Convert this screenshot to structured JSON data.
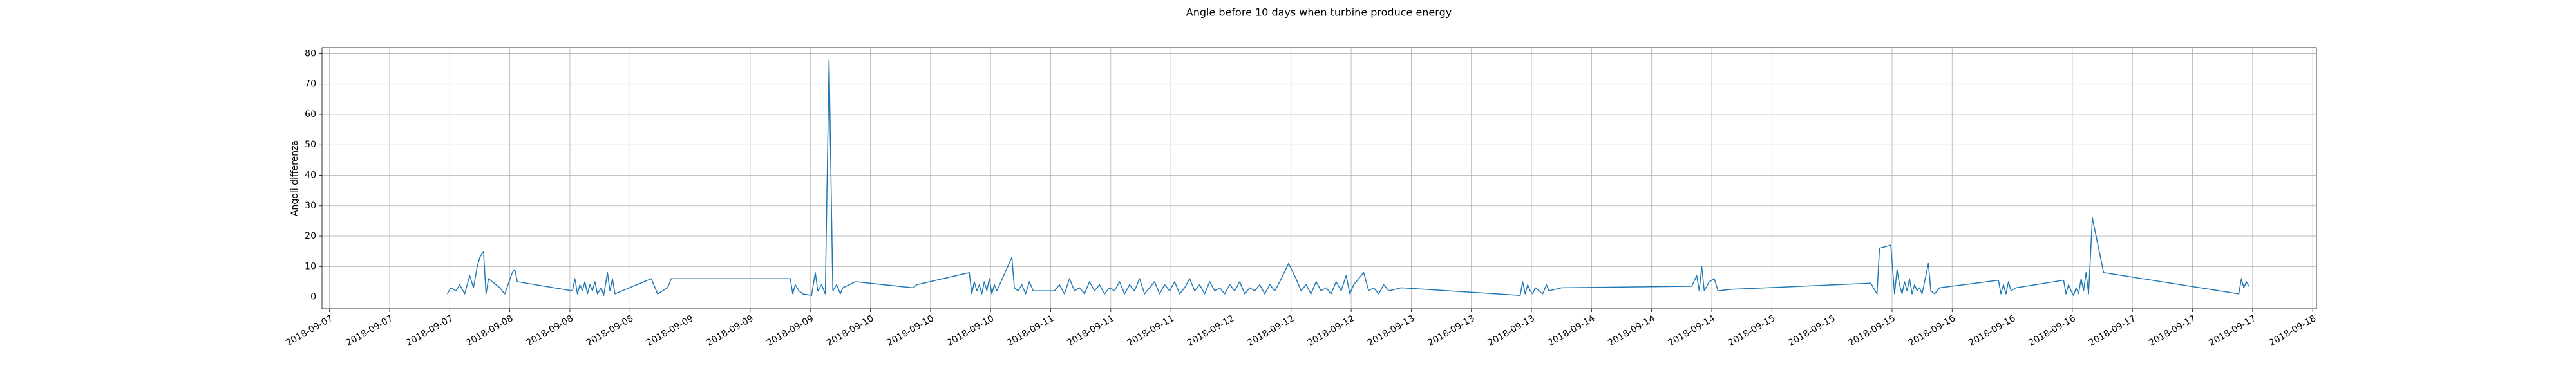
{
  "chart_data": {
    "type": "line",
    "title": "Angle before 10 days when turbine produce energy",
    "ylabel": "Angoli differenza",
    "color": "#1f77b4",
    "grid": true,
    "xlim": [
      "2018-09-06T23:00",
      "2018-09-18T00:30"
    ],
    "ylim": [
      -3.9,
      82
    ],
    "yticks": [
      0,
      10,
      20,
      30,
      40,
      50,
      60,
      70,
      80
    ],
    "xticks": [
      {
        "value": "2018-09-07T00:00",
        "label": "2018-09-07"
      },
      {
        "value": "2018-09-07T08:00",
        "label": "2018-09-07"
      },
      {
        "value": "2018-09-07T16:00",
        "label": "2018-09-07"
      },
      {
        "value": "2018-09-08T00:00",
        "label": "2018-09-08"
      },
      {
        "value": "2018-09-08T08:00",
        "label": "2018-09-08"
      },
      {
        "value": "2018-09-08T16:00",
        "label": "2018-09-08"
      },
      {
        "value": "2018-09-09T00:00",
        "label": "2018-09-09"
      },
      {
        "value": "2018-09-09T08:00",
        "label": "2018-09-09"
      },
      {
        "value": "2018-09-09T16:00",
        "label": "2018-09-09"
      },
      {
        "value": "2018-09-10T00:00",
        "label": "2018-09-10"
      },
      {
        "value": "2018-09-10T08:00",
        "label": "2018-09-10"
      },
      {
        "value": "2018-09-10T16:00",
        "label": "2018-09-10"
      },
      {
        "value": "2018-09-11T00:00",
        "label": "2018-09-11"
      },
      {
        "value": "2018-09-11T08:00",
        "label": "2018-09-11"
      },
      {
        "value": "2018-09-11T16:00",
        "label": "2018-09-11"
      },
      {
        "value": "2018-09-12T00:00",
        "label": "2018-09-12"
      },
      {
        "value": "2018-09-12T08:00",
        "label": "2018-09-12"
      },
      {
        "value": "2018-09-12T16:00",
        "label": "2018-09-12"
      },
      {
        "value": "2018-09-13T00:00",
        "label": "2018-09-13"
      },
      {
        "value": "2018-09-13T08:00",
        "label": "2018-09-13"
      },
      {
        "value": "2018-09-13T16:00",
        "label": "2018-09-13"
      },
      {
        "value": "2018-09-14T00:00",
        "label": "2018-09-14"
      },
      {
        "value": "2018-09-14T08:00",
        "label": "2018-09-14"
      },
      {
        "value": "2018-09-14T16:00",
        "label": "2018-09-14"
      },
      {
        "value": "2018-09-15T00:00",
        "label": "2018-09-15"
      },
      {
        "value": "2018-09-15T08:00",
        "label": "2018-09-15"
      },
      {
        "value": "2018-09-15T16:00",
        "label": "2018-09-15"
      },
      {
        "value": "2018-09-16T00:00",
        "label": "2018-09-16"
      },
      {
        "value": "2018-09-16T08:00",
        "label": "2018-09-16"
      },
      {
        "value": "2018-09-16T16:00",
        "label": "2018-09-16"
      },
      {
        "value": "2018-09-17T00:00",
        "label": "2018-09-17"
      },
      {
        "value": "2018-09-17T08:00",
        "label": "2018-09-17"
      },
      {
        "value": "2018-09-17T16:00",
        "label": "2018-09-17"
      },
      {
        "value": "2018-09-18T00:00",
        "label": "2018-09-18"
      }
    ],
    "x": [
      "2018-09-07T15:40",
      "2018-09-07T16:10",
      "2018-09-07T16:50",
      "2018-09-07T17:20",
      "2018-09-07T18:00",
      "2018-09-07T18:40",
      "2018-09-07T19:10",
      "2018-09-07T19:40",
      "2018-09-07T20:00",
      "2018-09-07T20:30",
      "2018-09-07T20:50",
      "2018-09-07T21:10",
      "2018-09-07T21:40",
      "2018-09-07T22:40",
      "2018-09-07T23:20",
      "2018-09-08T00:20",
      "2018-09-08T00:40",
      "2018-09-08T01:00",
      "2018-09-08T08:20",
      "2018-09-08T08:40",
      "2018-09-08T09:00",
      "2018-09-08T09:20",
      "2018-09-08T09:40",
      "2018-09-08T10:00",
      "2018-09-08T10:20",
      "2018-09-08T10:40",
      "2018-09-08T11:00",
      "2018-09-08T11:20",
      "2018-09-08T11:40",
      "2018-09-08T12:10",
      "2018-09-08T12:30",
      "2018-09-08T13:00",
      "2018-09-08T13:20",
      "2018-09-08T13:40",
      "2018-09-08T14:00",
      "2018-09-08T18:50",
      "2018-09-08T19:40",
      "2018-09-08T21:00",
      "2018-09-08T21:30",
      "2018-09-09T13:20",
      "2018-09-09T13:40",
      "2018-09-09T14:00",
      "2018-09-09T14:30",
      "2018-09-09T15:00",
      "2018-09-09T16:10",
      "2018-09-09T16:40",
      "2018-09-09T17:00",
      "2018-09-09T17:30",
      "2018-09-09T18:00",
      "2018-09-09T18:30",
      "2018-09-09T19:00",
      "2018-09-09T19:30",
      "2018-09-09T20:00",
      "2018-09-09T20:20",
      "2018-09-09T22:00",
      "2018-09-10T05:40",
      "2018-09-10T06:10",
      "2018-09-10T13:10",
      "2018-09-10T13:30",
      "2018-09-10T13:50",
      "2018-09-10T14:10",
      "2018-09-10T14:30",
      "2018-09-10T14:50",
      "2018-09-10T15:10",
      "2018-09-10T15:30",
      "2018-09-10T15:50",
      "2018-09-10T16:10",
      "2018-09-10T16:30",
      "2018-09-10T16:50",
      "2018-09-10T18:50",
      "2018-09-10T19:10",
      "2018-09-10T19:40",
      "2018-09-10T20:10",
      "2018-09-10T20:40",
      "2018-09-10T21:10",
      "2018-09-10T21:40",
      "2018-09-11T00:30",
      "2018-09-11T01:10",
      "2018-09-11T01:50",
      "2018-09-11T02:30",
      "2018-09-11T03:10",
      "2018-09-11T03:50",
      "2018-09-11T04:30",
      "2018-09-11T05:10",
      "2018-09-11T05:50",
      "2018-09-11T06:30",
      "2018-09-11T07:10",
      "2018-09-11T07:50",
      "2018-09-11T08:30",
      "2018-09-11T09:10",
      "2018-09-11T09:50",
      "2018-09-11T10:30",
      "2018-09-11T11:10",
      "2018-09-11T11:50",
      "2018-09-11T12:30",
      "2018-09-11T13:10",
      "2018-09-11T13:50",
      "2018-09-11T14:30",
      "2018-09-11T15:10",
      "2018-09-11T15:50",
      "2018-09-11T16:30",
      "2018-09-11T17:10",
      "2018-09-11T17:50",
      "2018-09-11T18:30",
      "2018-09-11T19:10",
      "2018-09-11T19:50",
      "2018-09-11T20:30",
      "2018-09-11T21:10",
      "2018-09-11T21:50",
      "2018-09-11T22:30",
      "2018-09-11T23:10",
      "2018-09-11T23:50",
      "2018-09-12T00:30",
      "2018-09-12T01:10",
      "2018-09-12T01:50",
      "2018-09-12T02:30",
      "2018-09-12T03:10",
      "2018-09-12T03:50",
      "2018-09-12T04:30",
      "2018-09-12T05:10",
      "2018-09-12T05:50",
      "2018-09-12T06:30",
      "2018-09-12T07:40",
      "2018-09-12T08:40",
      "2018-09-12T09:20",
      "2018-09-12T10:00",
      "2018-09-12T10:40",
      "2018-09-12T11:20",
      "2018-09-12T12:00",
      "2018-09-12T12:40",
      "2018-09-12T13:20",
      "2018-09-12T14:00",
      "2018-09-12T14:40",
      "2018-09-12T15:20",
      "2018-09-12T15:50",
      "2018-09-12T16:20",
      "2018-09-12T17:00",
      "2018-09-12T17:40",
      "2018-09-12T18:20",
      "2018-09-12T19:00",
      "2018-09-12T19:40",
      "2018-09-12T20:20",
      "2018-09-12T21:00",
      "2018-09-12T22:40",
      "2018-09-13T14:30",
      "2018-09-13T14:50",
      "2018-09-13T15:10",
      "2018-09-13T15:30",
      "2018-09-13T15:50",
      "2018-09-13T16:10",
      "2018-09-13T16:30",
      "2018-09-13T17:30",
      "2018-09-13T18:00",
      "2018-09-13T18:20",
      "2018-09-13T20:00",
      "2018-09-14T13:20",
      "2018-09-14T14:00",
      "2018-09-14T14:20",
      "2018-09-14T14:40",
      "2018-09-14T15:00",
      "2018-09-14T15:40",
      "2018-09-14T16:20",
      "2018-09-14T16:50",
      "2018-09-14T18:40",
      "2018-09-15T13:10",
      "2018-09-15T14:00",
      "2018-09-15T14:20",
      "2018-09-15T15:50",
      "2018-09-15T16:20",
      "2018-09-15T16:40",
      "2018-09-15T17:00",
      "2018-09-15T17:20",
      "2018-09-15T17:40",
      "2018-09-15T18:00",
      "2018-09-15T18:20",
      "2018-09-15T18:40",
      "2018-09-15T19:00",
      "2018-09-15T19:20",
      "2018-09-15T19:40",
      "2018-09-15T20:00",
      "2018-09-15T20:50",
      "2018-09-15T21:10",
      "2018-09-15T21:40",
      "2018-09-15T22:20",
      "2018-09-16T06:10",
      "2018-09-16T06:30",
      "2018-09-16T06:50",
      "2018-09-16T07:10",
      "2018-09-16T07:30",
      "2018-09-16T07:50",
      "2018-09-16T08:30",
      "2018-09-16T14:50",
      "2018-09-16T15:10",
      "2018-09-16T15:30",
      "2018-09-16T15:50",
      "2018-09-16T16:10",
      "2018-09-16T16:30",
      "2018-09-16T16:50",
      "2018-09-16T17:10",
      "2018-09-16T17:30",
      "2018-09-16T17:50",
      "2018-09-16T18:10",
      "2018-09-16T18:40",
      "2018-09-16T20:10",
      "2018-09-17T14:10",
      "2018-09-17T14:30",
      "2018-09-17T14:50",
      "2018-09-17T15:10",
      "2018-09-17T15:30"
    ],
    "values": [
      1,
      3,
      2,
      4,
      1,
      7,
      3,
      10,
      13,
      15,
      1,
      6,
      5,
      3,
      1,
      8,
      9,
      5,
      2,
      6,
      1,
      4,
      2,
      5,
      1,
      4,
      2,
      5,
      1,
      3,
      0.5,
      8,
      2,
      6,
      1,
      6,
      1,
      3,
      6,
      6,
      1,
      4,
      2,
      1,
      0.5,
      8,
      2,
      4,
      1,
      78,
      2,
      4,
      1,
      3,
      5,
      3,
      4,
      8,
      1,
      5,
      2,
      4,
      1,
      5,
      2,
      6,
      1,
      4,
      2,
      13,
      3,
      2,
      4,
      1,
      5,
      2,
      2,
      4,
      1,
      6,
      2,
      3,
      1,
      5,
      2,
      4,
      1,
      3,
      2,
      5,
      1,
      4,
      2,
      6,
      1,
      3,
      5,
      1,
      4,
      2,
      5,
      1,
      3,
      6,
      2,
      4,
      1,
      5,
      2,
      3,
      1,
      4,
      2,
      5,
      1,
      3,
      2,
      4,
      1,
      4,
      2,
      5,
      11,
      6,
      2,
      4,
      1,
      5,
      2,
      3,
      1,
      5,
      2,
      7,
      1,
      4,
      6,
      8,
      2,
      3,
      1,
      4,
      2,
      3,
      0.5,
      5,
      1,
      4,
      2,
      1,
      3,
      1,
      4,
      2,
      3,
      3.5,
      7,
      2,
      10,
      2,
      5,
      6,
      2,
      2.5,
      4.5,
      1,
      16,
      17,
      1,
      9,
      4,
      1,
      5,
      2,
      6,
      1,
      4,
      2,
      3,
      1,
      11,
      2,
      1,
      3,
      5.5,
      1,
      4,
      1,
      5,
      2,
      3,
      5.5,
      1,
      4,
      2,
      0.5,
      3,
      1,
      6,
      2,
      8,
      1,
      26,
      8,
      1,
      6,
      3,
      5,
      3.5
    ]
  }
}
